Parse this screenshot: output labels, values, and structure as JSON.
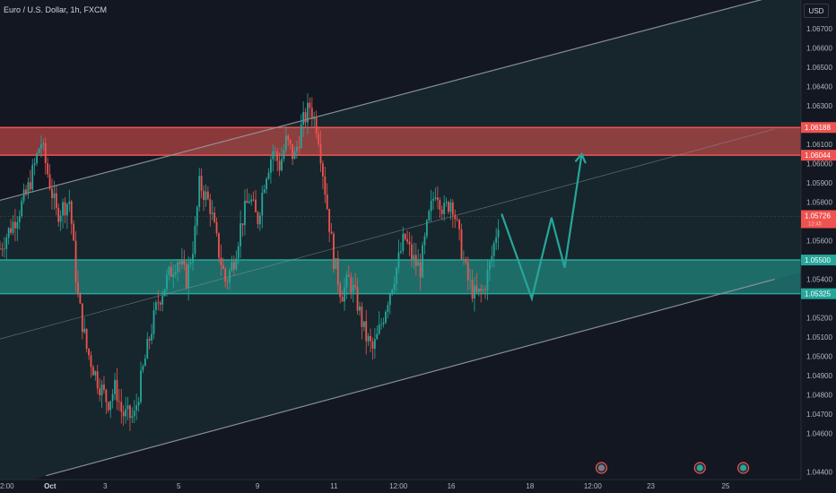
{
  "header": {
    "symbol_title": "Euro / U.S. Dollar, 1h, FXCM",
    "currency_label": "USD"
  },
  "colors": {
    "background": "#131722",
    "bull": "#26a69a",
    "bear": "#ef5350",
    "resistance_zone": "#ef5350",
    "support_zone": "#26a69a",
    "channel_line": "#9598a1",
    "projection_arrow": "#26a69a",
    "grid": "#1e222d"
  },
  "icons": {
    "event_markers": [
      "event-marker-icon",
      "event-marker-icon",
      "event-marker-icon"
    ]
  },
  "chart_data": {
    "type": "candlestick",
    "title": "Euro / U.S. Dollar, 1h, FXCM",
    "ylabel": "USD",
    "ylim": [
      1.0436,
      1.0685
    ],
    "grid": false,
    "y_ticks": [
      "1.06700",
      "1.06600",
      "1.06500",
      "1.06400",
      "1.06300",
      "1.06100",
      "1.06000",
      "1.05900",
      "1.05800",
      "1.05600",
      "1.05400",
      "1.05200",
      "1.05100",
      "1.05000",
      "1.04900",
      "1.04800",
      "1.04700",
      "1.04600",
      "1.04400"
    ],
    "x_ticks": [
      {
        "label": "2:00",
        "bold": false
      },
      {
        "label": "Oct",
        "bold": true
      },
      {
        "label": "3",
        "bold": false
      },
      {
        "label": "5",
        "bold": false
      },
      {
        "label": "9",
        "bold": false
      },
      {
        "label": "11",
        "bold": false
      },
      {
        "label": "12:00",
        "bold": false
      },
      {
        "label": "16",
        "bold": false
      },
      {
        "label": "18",
        "bold": false
      },
      {
        "label": "12:00",
        "bold": false
      },
      {
        "label": "23",
        "bold": false
      },
      {
        "label": "25",
        "bold": false
      }
    ],
    "zones": [
      {
        "name": "resistance",
        "top": 1.06188,
        "bottom": 1.06044,
        "top_label": "1.06188",
        "bottom_label": "1.06044"
      },
      {
        "name": "support",
        "top": 1.055,
        "bottom": 1.05325,
        "top_label": "1.05500",
        "bottom_label": "1.05325"
      }
    ],
    "last_price": {
      "value": 1.05726,
      "label": "1.05726",
      "countdown": "12:45"
    },
    "price_path": [
      [
        0,
        1.0556
      ],
      [
        1.2,
        1.0572
      ],
      [
        2,
        1.0584
      ],
      [
        2.6,
        1.0598
      ],
      [
        3.1,
        1.0612
      ],
      [
        3.6,
        1.0596
      ],
      [
        4.3,
        1.0574
      ],
      [
        5.3,
        1.0581
      ],
      [
        5.9,
        1.0532
      ],
      [
        6.6,
        1.0504
      ],
      [
        7.4,
        1.0488
      ],
      [
        8.2,
        1.0476
      ],
      [
        8.8,
        1.0484
      ],
      [
        9.3,
        1.047
      ],
      [
        10.2,
        1.0468
      ],
      [
        10.8,
        1.049
      ],
      [
        11.4,
        1.051
      ],
      [
        12,
        1.0528
      ],
      [
        12.8,
        1.0541
      ],
      [
        13.5,
        1.0551
      ],
      [
        14.2,
        1.054
      ],
      [
        14.8,
        1.0561
      ],
      [
        15.2,
        1.059
      ],
      [
        16,
        1.0578
      ],
      [
        16.6,
        1.0556
      ],
      [
        17.2,
        1.0538
      ],
      [
        17.8,
        1.055
      ],
      [
        18.4,
        1.057
      ],
      [
        19,
        1.0583
      ],
      [
        19.6,
        1.057
      ],
      [
        20.2,
        1.0594
      ],
      [
        20.8,
        1.0607
      ],
      [
        21.3,
        1.0599
      ],
      [
        21.8,
        1.0612
      ],
      [
        22.4,
        1.0603
      ],
      [
        23,
        1.062
      ],
      [
        23.6,
        1.063
      ],
      [
        24.2,
        1.0618
      ],
      [
        24.8,
        1.0584
      ],
      [
        25.4,
        1.0551
      ],
      [
        26,
        1.0532
      ],
      [
        26.6,
        1.054
      ],
      [
        27.2,
        1.0528
      ],
      [
        27.8,
        1.0511
      ],
      [
        28.4,
        1.0503
      ],
      [
        29,
        1.0516
      ],
      [
        29.6,
        1.0532
      ],
      [
        30.2,
        1.0546
      ],
      [
        30.8,
        1.0562
      ],
      [
        31.4,
        1.0551
      ],
      [
        32,
        1.0545
      ],
      [
        32.6,
        1.057
      ],
      [
        33.2,
        1.0588
      ],
      [
        33.8,
        1.0575
      ],
      [
        34.4,
        1.0582
      ],
      [
        35,
        1.056
      ],
      [
        35.6,
        1.054
      ],
      [
        36.2,
        1.0531
      ],
      [
        36.8,
        1.0534
      ],
      [
        37.4,
        1.055
      ],
      [
        38,
        1.0572
      ]
    ],
    "channel": {
      "upper": [
        [
          0,
          1.0581
        ],
        [
          59,
          1.0687
        ]
      ],
      "middle": [
        [
          0,
          1.0509
        ],
        [
          59,
          1.0618
        ]
      ],
      "lower": [
        [
          3.5,
          1.0438
        ],
        [
          59,
          1.054
        ]
      ]
    },
    "projection": [
      [
        38.2,
        1.0574
      ],
      [
        40.5,
        1.053
      ],
      [
        42,
        1.0572
      ],
      [
        43,
        1.0546
      ],
      [
        44.3,
        1.0605
      ]
    ],
    "x_range": [
      0,
      61
    ],
    "annotations": [
      "1.06188",
      "1.06044",
      "1.05726",
      "1.05500",
      "1.05325"
    ]
  }
}
